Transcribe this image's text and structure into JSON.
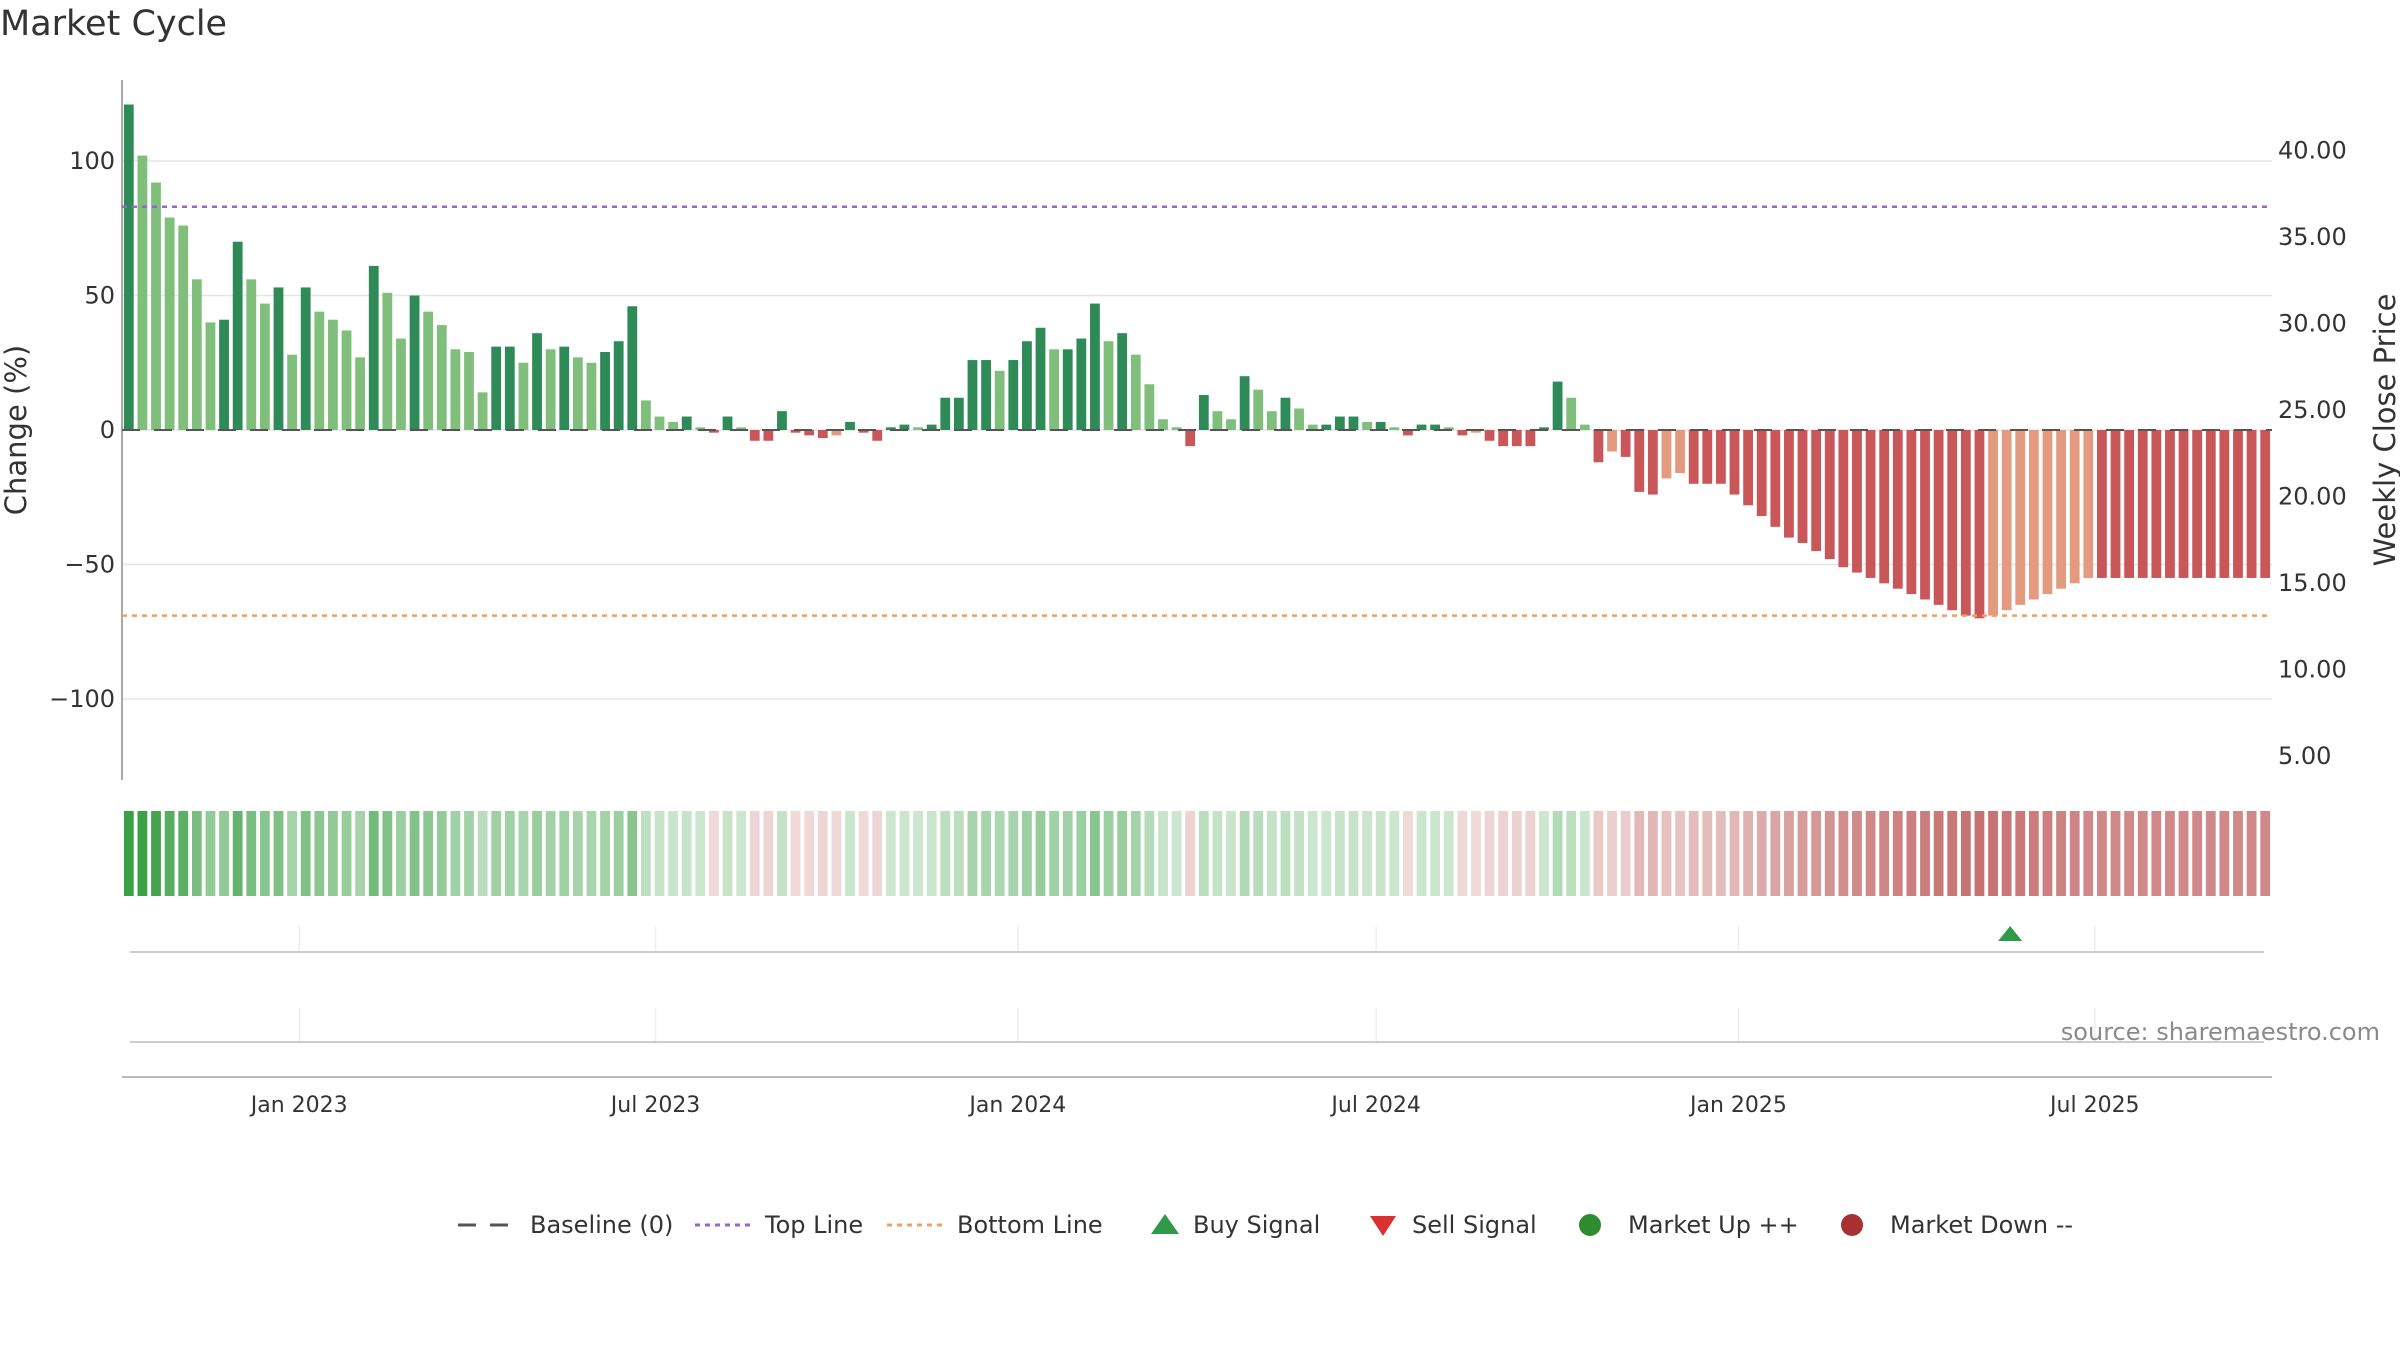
{
  "chart_data": {
    "type": "bar",
    "title": "Market Cycle",
    "ylabel": "Change (%)",
    "y2label": "Weekly Close Price",
    "ylim": [
      -130,
      130
    ],
    "y2lim": [
      2.5,
      44.5
    ],
    "yticks": [
      "100",
      "50",
      "0",
      "−50",
      "−100"
    ],
    "y2ticks": [
      "40.00",
      "35.00",
      "30.00",
      "25.00",
      "20.00",
      "15.00",
      "10.00",
      "5.00"
    ],
    "x_start": "2022-10-03",
    "x_end": "2025-09-29",
    "xticks": [
      {
        "label": "Jan 2023",
        "date": "2023-01-01"
      },
      {
        "label": "Jul 2023",
        "date": "2023-07-01"
      },
      {
        "label": "Jan 2024",
        "date": "2024-01-01"
      },
      {
        "label": "Jul 2024",
        "date": "2024-07-01"
      },
      {
        "label": "Jan 2025",
        "date": "2025-01-01"
      },
      {
        "label": "Jul 2025",
        "date": "2025-07-01"
      }
    ],
    "top_line": 83,
    "bottom_line": -69,
    "series": [
      {
        "name": "Change (%)",
        "values": [
          121,
          102,
          92,
          79,
          76,
          56,
          40,
          41,
          70,
          56,
          47,
          53,
          28,
          53,
          44,
          41,
          37,
          27,
          61,
          51,
          34,
          50,
          44,
          39,
          30,
          29,
          14,
          31,
          31,
          25,
          36,
          30,
          31,
          27,
          25,
          29,
          33,
          46,
          11,
          5,
          3,
          5,
          1,
          -1,
          5,
          1,
          -4,
          -4,
          7,
          -1,
          -2,
          -3,
          -2,
          3,
          -1,
          -4,
          1,
          2,
          1,
          2,
          12,
          12,
          26,
          26,
          22,
          26,
          33,
          38,
          30,
          30,
          34,
          47,
          33,
          36,
          28,
          17,
          4,
          1,
          -6,
          13,
          7,
          4,
          20,
          15,
          7,
          12,
          8,
          2,
          2,
          5,
          5,
          3,
          3,
          1,
          -2,
          2,
          2,
          1,
          -2,
          -1,
          -4,
          -6,
          -6,
          -6,
          1,
          18,
          12,
          2,
          -12,
          -8,
          -10,
          -23,
          -24,
          -18,
          -16,
          -20,
          -20,
          -20,
          -24,
          -28,
          -32,
          -36,
          -40,
          -42,
          -45,
          -48,
          -51,
          -53,
          -55,
          -57,
          -59,
          -61,
          -63,
          -65,
          -67,
          -69,
          -70,
          -69,
          -67,
          -65,
          -63,
          -61,
          -59,
          -57,
          -55,
          -55,
          -55,
          -55,
          -55,
          -55,
          -55,
          -55,
          -55,
          -55,
          -55,
          -55,
          -55,
          -55
        ]
      },
      {
        "name": "Weekly Close Price",
        "values": []
      }
    ],
    "colors": {
      "strong_up": "#2e8b57",
      "up": "#7fbf7b",
      "strong_down": "#c9575a",
      "down": "#e49a7e",
      "top_line": "#9966cc",
      "bottom_line": "#f0a060",
      "baseline": "#555555"
    },
    "regime_strip": {
      "label": "",
      "colors_sample": [
        "#5aac5e",
        "#a8d8ac",
        "#efd4d4",
        "#d89a9a"
      ]
    },
    "signals": [
      {
        "type": "Buy Signal",
        "date": "2025-05-19"
      }
    ],
    "source": "source: sharemaestro.com",
    "legend": {
      "position": "bottom-center",
      "items": [
        {
          "label": "Baseline (0)",
          "icon": "dashed-line-icon",
          "color": "#555555"
        },
        {
          "label": "Top Line",
          "icon": "dotted-line-icon",
          "color": "#9966cc"
        },
        {
          "label": "Bottom Line",
          "icon": "dotted-line-icon",
          "color": "#f0a060"
        },
        {
          "label": "Buy Signal",
          "icon": "triangle-up-icon",
          "color": "#2e9a4a"
        },
        {
          "label": "Sell Signal",
          "icon": "triangle-down-icon",
          "color": "#d93030"
        },
        {
          "label": "Market Up ++",
          "icon": "circle-icon",
          "color": "#2e8b2e"
        },
        {
          "label": "Market Down --",
          "icon": "circle-icon",
          "color": "#a83030"
        }
      ]
    }
  }
}
